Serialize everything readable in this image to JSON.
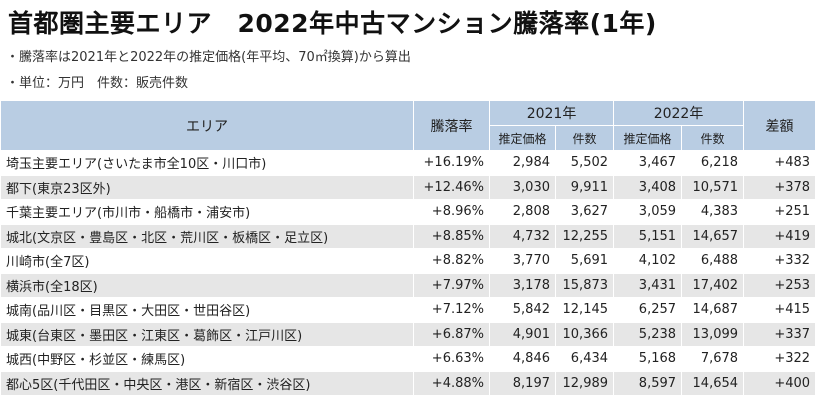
{
  "title": "首都圏主要エリア　2022年中古マンション騰落率(1年)",
  "notes": [
    "・騰落率は2021年と2022年の推定価格(年平均、70㎡換算)から算出",
    "・単位：万円　件数：販売件数"
  ],
  "headers": {
    "area": "エリア",
    "rate": "騰落率",
    "year2021": "2021年",
    "year2022": "2022年",
    "diff": "差額",
    "price": "推定価格",
    "count": "件数"
  },
  "rows": [
    {
      "area": "埼玉主要エリア(さいたま市全10区・川口市)",
      "rate": "+16.19%",
      "p2021": "2,984",
      "c2021": "5,502",
      "p2022": "3,467",
      "c2022": "6,218",
      "diff": "+483"
    },
    {
      "area": "都下(東京23区外)",
      "rate": "+12.46%",
      "p2021": "3,030",
      "c2021": "9,911",
      "p2022": "3,408",
      "c2022": "10,571",
      "diff": "+378"
    },
    {
      "area": "千葉主要エリア(市川市・船橋市・浦安市)",
      "rate": "+8.96%",
      "p2021": "2,808",
      "c2021": "3,627",
      "p2022": "3,059",
      "c2022": "4,383",
      "diff": "+251"
    },
    {
      "area": "城北(文京区・豊島区・北区・荒川区・板橋区・足立区)",
      "rate": "+8.85%",
      "p2021": "4,732",
      "c2021": "12,255",
      "p2022": "5,151",
      "c2022": "14,657",
      "diff": "+419"
    },
    {
      "area": "川崎市(全7区)",
      "rate": "+8.82%",
      "p2021": "3,770",
      "c2021": "5,691",
      "p2022": "4,102",
      "c2022": "6,488",
      "diff": "+332"
    },
    {
      "area": "横浜市(全18区)",
      "rate": "+7.97%",
      "p2021": "3,178",
      "c2021": "15,873",
      "p2022": "3,431",
      "c2022": "17,402",
      "diff": "+253"
    },
    {
      "area": "城南(品川区・目黒区・大田区・世田谷区)",
      "rate": "+7.12%",
      "p2021": "5,842",
      "c2021": "12,145",
      "p2022": "6,257",
      "c2022": "14,687",
      "diff": "+415"
    },
    {
      "area": "城東(台東区・墨田区・江東区・葛飾区・江戸川区)",
      "rate": "+6.87%",
      "p2021": "4,901",
      "c2021": "10,366",
      "p2022": "5,238",
      "c2022": "13,099",
      "diff": "+337"
    },
    {
      "area": "城西(中野区・杉並区・練馬区)",
      "rate": "+6.63%",
      "p2021": "4,846",
      "c2021": "6,434",
      "p2022": "5,168",
      "c2022": "7,678",
      "diff": "+322"
    },
    {
      "area": "都心5区(千代田区・中央区・港区・新宿区・渋谷区)",
      "rate": "+4.88%",
      "p2021": "8,197",
      "c2021": "12,989",
      "p2022": "8,597",
      "c2022": "14,654",
      "diff": "+400"
    }
  ]
}
